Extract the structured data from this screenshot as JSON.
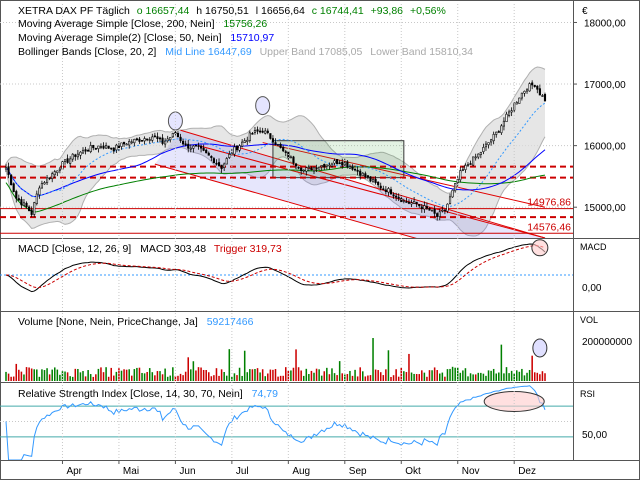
{
  "chart_data": [
    {
      "type": "candlestick",
      "legend": [
        {
          "label": "XETRA DAX PF  Täglich",
          "parts": [
            {
              "text": "o 16657,44",
              "color": "#008000"
            },
            {
              "text": "h 16750,51",
              "color": "#000000"
            },
            {
              "text": "l 16656,64",
              "color": "#000000"
            },
            {
              "text": "c 16744,41",
              "color": "#008000"
            },
            {
              "text": "+93,86",
              "color": "#008000"
            },
            {
              "text": "+0,56%",
              "color": "#008000"
            }
          ]
        },
        {
          "label": "Moving Average Simple  [Close, 200, Nein]",
          "value": "15756,26",
          "color": "#008000"
        },
        {
          "label": "Moving Average Simple(2)  [Close, 50, Nein]",
          "value": "15710,97",
          "color": "#0000ff"
        },
        {
          "label": "Bollinger Bands  [Close, 20, 2]",
          "parts": [
            {
              "text": "Mid Line 16447,69",
              "color": "#3399ff"
            },
            {
              "text": "Upper Band 17085,05",
              "color": "#aaaaaa"
            },
            {
              "text": "Lower Band 15810,34",
              "color": "#aaaaaa"
            }
          ]
        }
      ],
      "currency": "€",
      "y_ticks": [
        "18000,00",
        "17000,00",
        "16000,00",
        "15000,00"
      ],
      "ylim": [
        14500,
        18300
      ],
      "annotations": [
        {
          "text": "14976,86",
          "value": 14976.86,
          "color": "#cc0000"
        },
        {
          "text": "14576,46",
          "value": 14576.46,
          "color": "#cc0000"
        }
      ],
      "horizontal_lines": [
        15660,
        15480,
        14840
      ],
      "months": [
        {
          "label": "Apr",
          "i": 22
        },
        {
          "label": "Mai",
          "i": 44
        },
        {
          "label": "Jun",
          "i": 66
        },
        {
          "label": "Jul",
          "i": 88
        },
        {
          "label": "Aug",
          "i": 110
        },
        {
          "label": "Sep",
          "i": 132
        },
        {
          "label": "Okt",
          "i": 154
        },
        {
          "label": "Nov",
          "i": 176
        },
        {
          "label": "Dez",
          "i": 198
        }
      ],
      "close_keypoints": [
        [
          0,
          15650
        ],
        [
          4,
          15150
        ],
        [
          8,
          15000
        ],
        [
          10,
          14900
        ],
        [
          13,
          15350
        ],
        [
          17,
          15500
        ],
        [
          22,
          15700
        ],
        [
          27,
          15850
        ],
        [
          32,
          15950
        ],
        [
          37,
          16000
        ],
        [
          42,
          15950
        ],
        [
          47,
          16050
        ],
        [
          52,
          16100
        ],
        [
          57,
          16150
        ],
        [
          61,
          16050
        ],
        [
          66,
          16200
        ],
        [
          70,
          16000
        ],
        [
          75,
          15950
        ],
        [
          80,
          15800
        ],
        [
          84,
          15650
        ],
        [
          88,
          15900
        ],
        [
          92,
          16050
        ],
        [
          96,
          16200
        ],
        [
          100,
          16250
        ],
        [
          104,
          16100
        ],
        [
          108,
          15900
        ],
        [
          112,
          15750
        ],
        [
          116,
          15600
        ],
        [
          120,
          15650
        ],
        [
          125,
          15700
        ],
        [
          130,
          15750
        ],
        [
          135,
          15650
        ],
        [
          140,
          15500
        ],
        [
          145,
          15350
        ],
        [
          150,
          15250
        ],
        [
          155,
          15100
        ],
        [
          160,
          15050
        ],
        [
          165,
          14950
        ],
        [
          168,
          14850
        ],
        [
          171,
          14950
        ],
        [
          174,
          15250
        ],
        [
          177,
          15550
        ],
        [
          180,
          15700
        ],
        [
          184,
          15850
        ],
        [
          188,
          16050
        ],
        [
          191,
          16200
        ],
        [
          194,
          16400
        ],
        [
          197,
          16600
        ],
        [
          200,
          16800
        ],
        [
          203,
          16950
        ],
        [
          206,
          17000
        ],
        [
          208,
          16850
        ],
        [
          210,
          16750
        ]
      ]
    },
    {
      "type": "line",
      "label": "MACD  [Close, 12, 26, 9]",
      "parts": [
        {
          "text": "MACD 303,48",
          "color": "#000000"
        },
        {
          "text": "Trigger 319,73",
          "color": "#cc0000"
        }
      ],
      "panel_title": "MACD",
      "y_ticks": [
        "0,00"
      ]
    },
    {
      "type": "bar",
      "label": "Volume  [None, Nein, PriceChange, Ja]",
      "value": "59217466",
      "value_color": "#3399ff",
      "panel_title": "VOL",
      "y_ticks": [
        "200000000"
      ]
    },
    {
      "type": "line",
      "label": "Relative Strength Index  [Close, 14, 30, 70, Nein]",
      "value": "74,79",
      "value_color": "#3399ff",
      "panel_title": "RSI",
      "y_ticks": [
        "50,00"
      ],
      "levels": [
        30,
        70
      ]
    }
  ]
}
